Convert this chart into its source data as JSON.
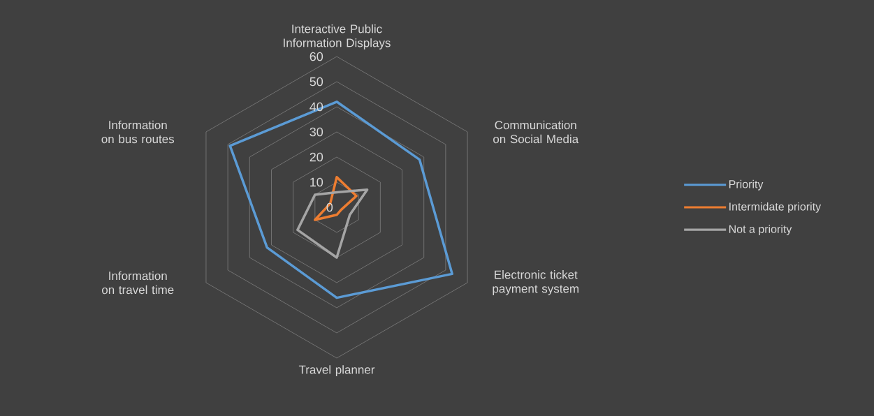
{
  "chart_data": {
    "type": "radar",
    "categories": [
      "Interactive Public Information Displays",
      "Communication on Social Media",
      "Electronic ticket payment system",
      "Travel planner",
      "Information on travel time",
      "Information on bus routes"
    ],
    "series": [
      {
        "name": "Priority",
        "color": "#5b9bd5",
        "values": [
          42,
          38,
          53,
          36,
          32,
          49
        ]
      },
      {
        "name": "Intermidate priority",
        "color": "#ed7d31",
        "values": [
          12,
          9,
          2,
          3,
          10,
          3
        ]
      },
      {
        "name": "Not a priority",
        "color": "#a5a5a5",
        "values": [
          6,
          14,
          6,
          20,
          18,
          10
        ]
      }
    ],
    "ylim": [
      0,
      60
    ],
    "yticks": [
      {
        "value": 0,
        "label": "0"
      },
      10,
      20,
      30,
      40,
      50,
      60
    ],
    "grid": true,
    "legend": "right"
  }
}
